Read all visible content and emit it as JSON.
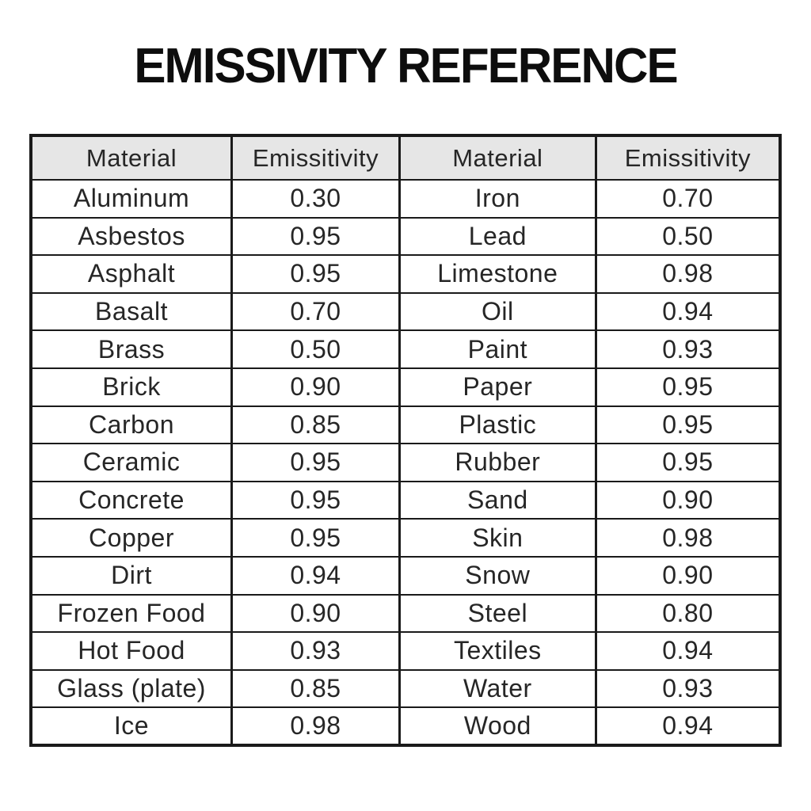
{
  "title": "EMISSIVITY REFERENCE",
  "table": {
    "headers": [
      "Material",
      "Emissitivity",
      "Material",
      "Emissitivity"
    ],
    "rows": [
      {
        "m1": "Aluminum",
        "e1": "0.30",
        "m2": "Iron",
        "e2": "0.70"
      },
      {
        "m1": "Asbestos",
        "e1": "0.95",
        "m2": "Lead",
        "e2": "0.50"
      },
      {
        "m1": "Asphalt",
        "e1": "0.95",
        "m2": "Limestone",
        "e2": "0.98"
      },
      {
        "m1": "Basalt",
        "e1": "0.70",
        "m2": "Oil",
        "e2": "0.94"
      },
      {
        "m1": "Brass",
        "e1": "0.50",
        "m2": "Paint",
        "e2": "0.93"
      },
      {
        "m1": "Brick",
        "e1": "0.90",
        "m2": "Paper",
        "e2": "0.95"
      },
      {
        "m1": "Carbon",
        "e1": "0.85",
        "m2": "Plastic",
        "e2": "0.95"
      },
      {
        "m1": "Ceramic",
        "e1": "0.95",
        "m2": "Rubber",
        "e2": "0.95"
      },
      {
        "m1": "Concrete",
        "e1": "0.95",
        "m2": "Sand",
        "e2": "0.90"
      },
      {
        "m1": "Copper",
        "e1": "0.95",
        "m2": "Skin",
        "e2": "0.98"
      },
      {
        "m1": "Dirt",
        "e1": "0.94",
        "m2": "Snow",
        "e2": "0.90"
      },
      {
        "m1": "Frozen Food",
        "e1": "0.90",
        "m2": "Steel",
        "e2": "0.80"
      },
      {
        "m1": "Hot Food",
        "e1": "0.93",
        "m2": "Textiles",
        "e2": "0.94"
      },
      {
        "m1": "Glass (plate)",
        "e1": "0.85",
        "m2": "Water",
        "e2": "0.93"
      },
      {
        "m1": "Ice",
        "e1": "0.98",
        "m2": "Wood",
        "e2": "0.94"
      }
    ],
    "colors": {
      "header_bg": "#e6e6e6",
      "border": "#1a1a1a",
      "text": "#262626",
      "title_text": "#0d0d0d",
      "page_bg": "#ffffff"
    }
  }
}
